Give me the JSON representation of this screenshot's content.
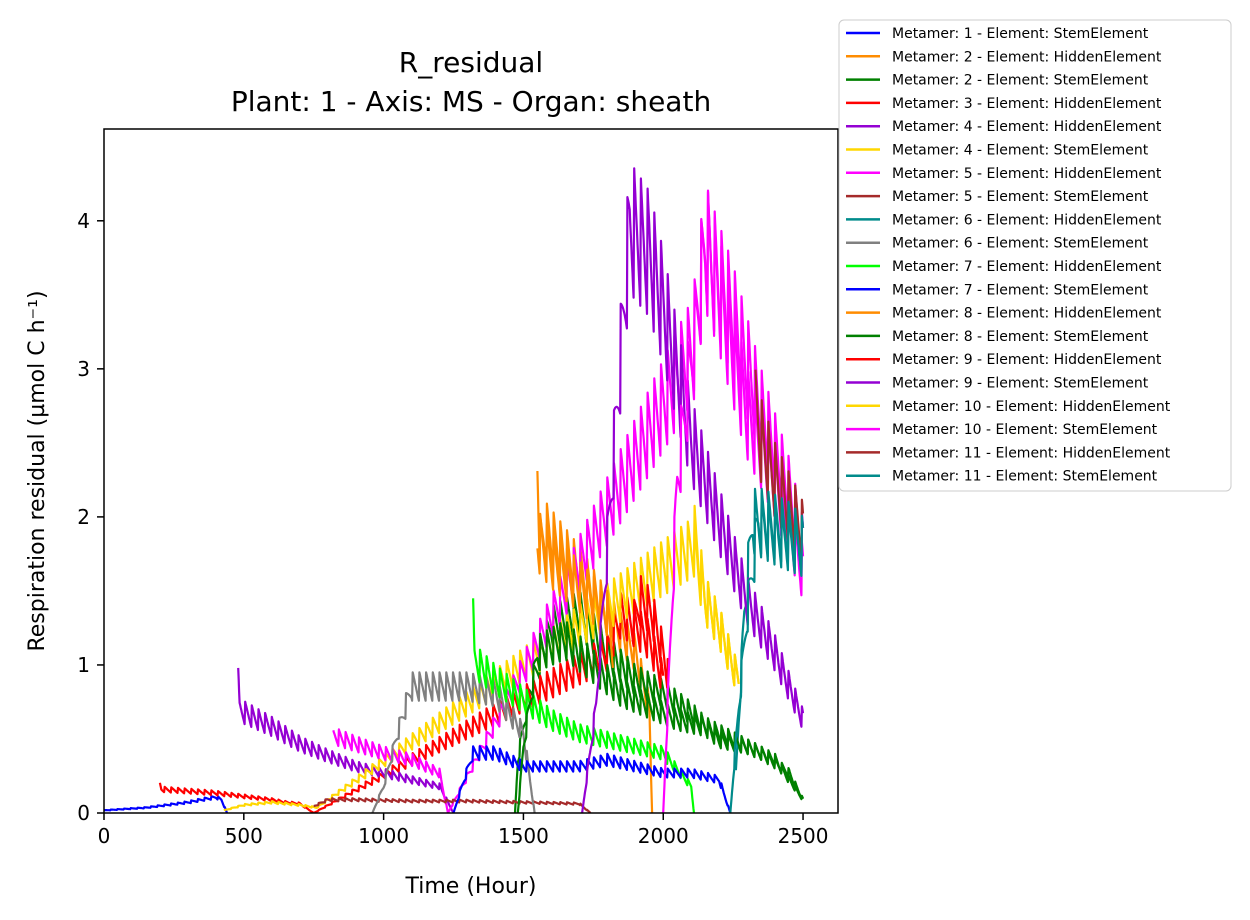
{
  "chart_data": {
    "type": "line",
    "title": "R_residual",
    "subtitle": "Plant: 1 - Axis: MS - Organ: sheath",
    "xlabel": "Time (Hour)",
    "ylabel": "Respiration residual (µmol C h⁻¹)",
    "xlim": [
      0,
      2625
    ],
    "ylim": [
      0,
      4.62
    ],
    "xticks": [
      0,
      500,
      1000,
      1500,
      2000,
      2500
    ],
    "yticks": [
      0,
      1,
      2,
      3,
      4
    ],
    "xtick_labels": [
      "0",
      "500",
      "1000",
      "1500",
      "2000",
      "2500"
    ],
    "ytick_labels": [
      "0",
      "1",
      "2",
      "3",
      "4"
    ],
    "grid": false,
    "legend_position": "outside-top-right",
    "series": [
      {
        "name": "Metamer: 1 - Element: StemElement",
        "color": "#0000ff",
        "osc_period": 24,
        "points": [
          [
            0,
            0.02
          ],
          [
            150,
            0.04
          ],
          [
            300,
            0.08
          ],
          [
            400,
            0.12
          ],
          [
            420,
            0.1
          ],
          [
            440,
            0.0
          ]
        ]
      },
      {
        "name": "Metamer: 2 - Element: HiddenElement",
        "color": "#ff8c00",
        "osc_period": 24,
        "points": [
          [
            1550,
            2.65
          ],
          [
            1560,
            2.0
          ],
          [
            1580,
            2.1
          ],
          [
            1700,
            1.8
          ],
          [
            1800,
            1.5
          ],
          [
            1900,
            1.2
          ],
          [
            1950,
            0.8
          ],
          [
            1960,
            0.0
          ]
        ]
      },
      {
        "name": "Metamer: 2 - Element: StemElement",
        "color": "#008000",
        "osc_period": 24,
        "points": [
          [
            1470,
            0.0
          ],
          [
            1480,
            0.4
          ],
          [
            1520,
            0.9
          ],
          [
            1600,
            1.4
          ],
          [
            1700,
            1.5
          ],
          [
            1800,
            1.2
          ],
          [
            1900,
            1.0
          ],
          [
            2000,
            0.9
          ],
          [
            2100,
            0.75
          ],
          [
            2200,
            0.55
          ],
          [
            2300,
            0.5
          ],
          [
            2400,
            0.4
          ],
          [
            2500,
            0.1
          ]
        ]
      },
      {
        "name": "Metamer: 3 - Element: HiddenElement",
        "color": "#ff0000",
        "osc_period": 24,
        "points": [
          [
            200,
            0.22
          ],
          [
            205,
            0.18
          ],
          [
            400,
            0.15
          ],
          [
            600,
            0.1
          ],
          [
            650,
            0.08
          ],
          [
            700,
            0.07
          ],
          [
            750,
            0.0
          ],
          [
            1800,
            1.2
          ],
          [
            1850,
            1.5
          ],
          [
            1900,
            1.4
          ],
          [
            1950,
            1.3
          ],
          [
            2000,
            1.0
          ]
        ]
      },
      {
        "name": "Metamer: 4 - Element: HiddenElement",
        "color": "#9400d3",
        "osc_period": 24,
        "points": [
          [
            480,
            0.98
          ],
          [
            485,
            0.78
          ],
          [
            600,
            0.65
          ],
          [
            700,
            0.52
          ],
          [
            800,
            0.43
          ],
          [
            900,
            0.35
          ],
          [
            1000,
            0.3
          ],
          [
            1100,
            0.25
          ],
          [
            1200,
            0.2
          ],
          [
            1250,
            0.0
          ]
        ]
      },
      {
        "name": "Metamer: 4 - Element: StemElement",
        "color": "#ffd700",
        "osc_period": 24,
        "points": [
          [
            430,
            0.02
          ],
          [
            500,
            0.06
          ],
          [
            600,
            0.08
          ],
          [
            700,
            0.06
          ],
          [
            760,
            0.04
          ],
          [
            2110,
            2.0
          ],
          [
            2150,
            1.6
          ],
          [
            2200,
            1.4
          ],
          [
            2250,
            1.1
          ],
          [
            2270,
            1.0
          ]
        ]
      },
      {
        "name": "Metamer: 5 - Element: HiddenElement",
        "color": "#ff00ff",
        "osc_period": 24,
        "points": [
          [
            820,
            0.58
          ],
          [
            900,
            0.52
          ],
          [
            1000,
            0.45
          ],
          [
            1100,
            0.4
          ],
          [
            1200,
            0.3
          ],
          [
            1230,
            0.0
          ],
          [
            2110,
            3.5
          ],
          [
            2150,
            4.28
          ],
          [
            2200,
            3.9
          ],
          [
            2300,
            3.0
          ],
          [
            2400,
            2.5
          ],
          [
            2500,
            1.8
          ]
        ]
      },
      {
        "name": "Metamer: 5 - Element: StemElement",
        "color": "#a52a2a",
        "osc_period": 24,
        "points": [
          [
            750,
            0.05
          ],
          [
            800,
            0.1
          ],
          [
            900,
            0.1
          ],
          [
            1100,
            0.09
          ],
          [
            1300,
            0.09
          ],
          [
            1500,
            0.08
          ],
          [
            1700,
            0.07
          ],
          [
            1740,
            0.0
          ]
        ]
      },
      {
        "name": "Metamer: 6 - Element: HiddenElement",
        "color": "#008b8b",
        "osc_period": 24,
        "points": [
          [
            2260,
            0.3
          ],
          [
            2290,
            1.5
          ],
          [
            2320,
            2.2
          ],
          [
            2400,
            2.1
          ],
          [
            2500,
            2.0
          ]
        ]
      },
      {
        "name": "Metamer: 6 - Element: StemElement",
        "color": "#808080",
        "osc_period": 24,
        "points": [
          [
            960,
            0.0
          ],
          [
            1000,
            0.2
          ],
          [
            1050,
            0.6
          ],
          [
            1100,
            0.95
          ],
          [
            1200,
            0.95
          ],
          [
            1300,
            0.95
          ],
          [
            1400,
            0.9
          ],
          [
            1500,
            0.6
          ],
          [
            1540,
            0.0
          ]
        ]
      },
      {
        "name": "Metamer: 7 - Element: HiddenElement",
        "color": "#00ff00",
        "osc_period": 24,
        "points": [
          [
            1320,
            1.45
          ],
          [
            1325,
            1.15
          ],
          [
            1400,
            1.0
          ],
          [
            1500,
            0.85
          ],
          [
            1600,
            0.7
          ],
          [
            1700,
            0.6
          ],
          [
            1800,
            0.55
          ],
          [
            1900,
            0.5
          ],
          [
            2000,
            0.45
          ],
          [
            2100,
            0.2
          ],
          [
            2110,
            0.0
          ]
        ]
      },
      {
        "name": "Metamer: 7 - Element: StemElement",
        "color": "#0000ff",
        "osc_period": 24,
        "points": [
          [
            1250,
            0.0
          ],
          [
            1280,
            0.2
          ],
          [
            1320,
            0.45
          ],
          [
            1400,
            0.45
          ],
          [
            1500,
            0.35
          ],
          [
            1600,
            0.35
          ],
          [
            1700,
            0.35
          ],
          [
            1800,
            0.4
          ],
          [
            1900,
            0.35
          ],
          [
            2000,
            0.3
          ],
          [
            2100,
            0.3
          ],
          [
            2200,
            0.25
          ],
          [
            2240,
            0.0
          ]
        ]
      },
      {
        "name": "Metamer: 8 - Element: HiddenElement",
        "color": "#ff8c00",
        "osc_period": 24,
        "points": [
          [
            1550,
            2.05
          ],
          [
            1600,
            1.9
          ],
          [
            1700,
            1.7
          ],
          [
            1800,
            1.5
          ],
          [
            1820,
            1.2
          ]
        ]
      },
      {
        "name": "Metamer: 8 - Element: StemElement",
        "color": "#008000",
        "osc_period": 24,
        "points": [
          [
            1480,
            0.0
          ],
          [
            1500,
            0.5
          ],
          [
            1550,
            1.2
          ],
          [
            1650,
            1.3
          ],
          [
            1750,
            1.1
          ],
          [
            1850,
            0.9
          ],
          [
            1950,
            0.8
          ],
          [
            2050,
            0.7
          ],
          [
            2150,
            0.65
          ],
          [
            2250,
            0.55
          ],
          [
            2350,
            0.45
          ],
          [
            2450,
            0.3
          ],
          [
            2500,
            0.1
          ]
        ]
      },
      {
        "name": "Metamer: 9 - Element: HiddenElement",
        "color": "#ff0000",
        "osc_period": 24,
        "points": [
          [
            1890,
            1.4
          ],
          [
            1920,
            1.6
          ],
          [
            1960,
            1.5
          ],
          [
            2000,
            1.2
          ],
          [
            2020,
            1.0
          ]
        ]
      },
      {
        "name": "Metamer: 9 - Element: StemElement",
        "color": "#9400d3",
        "osc_period": 24,
        "points": [
          [
            1710,
            0.0
          ],
          [
            1760,
            0.8
          ],
          [
            1810,
            2.3
          ],
          [
            1850,
            3.5
          ],
          [
            1880,
            4.4
          ],
          [
            1950,
            4.2
          ],
          [
            2000,
            3.8
          ],
          [
            2050,
            3.3
          ],
          [
            2100,
            2.8
          ],
          [
            2200,
            2.2
          ],
          [
            2300,
            1.6
          ],
          [
            2400,
            1.2
          ],
          [
            2500,
            0.7
          ]
        ]
      },
      {
        "name": "Metamer: 10 - Element: HiddenElement",
        "color": "#ffd700",
        "osc_period": 24,
        "points": [
          [
            2110,
            2.1
          ],
          [
            2150,
            1.6
          ],
          [
            2200,
            1.4
          ],
          [
            2250,
            1.1
          ],
          [
            2270,
            1.0
          ]
        ]
      },
      {
        "name": "Metamer: 10 - Element: StemElement",
        "color": "#ff00ff",
        "osc_period": 24,
        "points": [
          [
            2000,
            0.0
          ],
          [
            2050,
            2.5
          ],
          [
            2100,
            3.4
          ],
          [
            2150,
            4.25
          ],
          [
            2250,
            3.7
          ],
          [
            2350,
            3.0
          ],
          [
            2450,
            2.4
          ],
          [
            2500,
            2.0
          ]
        ]
      },
      {
        "name": "Metamer: 11 - Element: HiddenElement",
        "color": "#a52a2a",
        "osc_period": 24,
        "points": [
          [
            2330,
            3.05
          ],
          [
            2350,
            2.8
          ],
          [
            2400,
            2.5
          ],
          [
            2450,
            2.3
          ],
          [
            2500,
            2.1
          ]
        ]
      },
      {
        "name": "Metamer: 11 - Element: StemElement",
        "color": "#008b8b",
        "osc_period": 24,
        "points": [
          [
            2240,
            0.0
          ],
          [
            2270,
            0.8
          ],
          [
            2300,
            1.5
          ],
          [
            2340,
            2.2
          ],
          [
            2400,
            2.15
          ],
          [
            2450,
            2.1
          ],
          [
            2500,
            2.0
          ]
        ]
      }
    ]
  }
}
